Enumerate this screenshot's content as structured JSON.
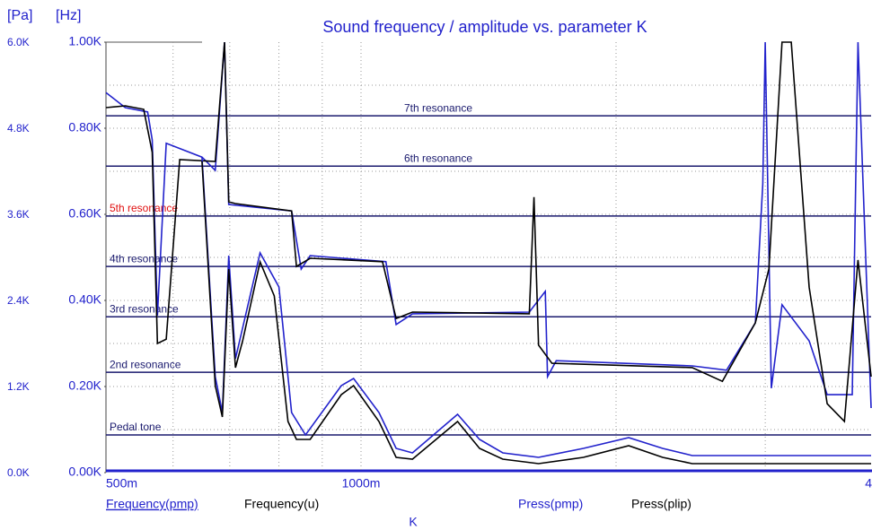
{
  "chart_data": {
    "type": "line",
    "title": "Sound frequency / amplitude vs. parameter  K",
    "xlabel": "K",
    "ylabel": "[Hz]",
    "y2label": "[Pa]",
    "xscale": "log",
    "xlim": [
      0.5,
      4
    ],
    "xticks": [
      {
        "value": 0.5,
        "label": "500m"
      },
      {
        "value": 1,
        "label": "1000m"
      },
      {
        "value": 4,
        "label": "4"
      }
    ],
    "xminor": [
      0.6,
      0.7,
      0.8,
      0.9,
      2,
      3
    ],
    "ylim": [
      0,
      1000
    ],
    "yticks": [
      {
        "value": 0,
        "label": "0.00K"
      },
      {
        "value": 200,
        "label": "0.20K"
      },
      {
        "value": 400,
        "label": "0.40K"
      },
      {
        "value": 600,
        "label": "0.60K"
      },
      {
        "value": 800,
        "label": "0.80K"
      },
      {
        "value": 1000,
        "label": "1.00K"
      }
    ],
    "yminor": [
      100,
      300,
      500,
      700,
      900
    ],
    "y2lim": [
      0,
      6000
    ],
    "y2ticks": [
      {
        "value": 0,
        "label": "0.0K"
      },
      {
        "value": 1200,
        "label": "1.2K"
      },
      {
        "value": 2400,
        "label": "2.4K"
      },
      {
        "value": 3600,
        "label": "3.6K"
      },
      {
        "value": 4800,
        "label": "4.8K"
      },
      {
        "value": 6000,
        "label": "6.0K"
      }
    ],
    "grid": true,
    "resonances": [
      {
        "label": "7th resonance",
        "value": 829,
        "color": "#1a1a6e"
      },
      {
        "label": "6th resonance",
        "value": 712,
        "color": "#1a1a6e"
      },
      {
        "label": "5th resonance",
        "value": 596,
        "color": "#e01010"
      },
      {
        "label": "4th resonance",
        "value": 479,
        "color": "#1a1a6e"
      },
      {
        "label": "3rd resonance",
        "value": 362,
        "color": "#1a1a6e"
      },
      {
        "label": "2nd resonance",
        "value": 233,
        "color": "#1a1a6e"
      },
      {
        "label": "Pedal tone",
        "value": 87.5,
        "color": "#1a1a6e"
      }
    ],
    "series": [
      {
        "name": "Frequency(pmp)",
        "color": "#2222cc",
        "x": [
          0.5,
          0.527,
          0.56,
          0.567,
          0.575,
          0.589,
          0.649,
          0.673,
          0.69,
          0.698,
          0.828,
          0.85,
          0.871,
          1.07,
          1.1,
          1.15,
          1.58,
          1.65,
          1.66,
          1.7,
          2.46,
          2.7,
          2.92,
          2.98,
          3.0,
          3.05,
          3.14,
          3.38,
          3.55,
          3.8,
          3.86,
          4.0
        ],
        "values": [
          883,
          848,
          838,
          773,
          365,
          765,
          733,
          702,
          1000,
          623,
          608,
          473,
          504,
          490,
          344,
          369,
          373,
          421,
          223,
          260,
          248,
          238,
          348,
          671,
          1000,
          196,
          390,
          306,
          181,
          181,
          1000,
          150
        ]
      },
      {
        "name": "Frequency(u)",
        "color": "#000000",
        "x": [
          0.5,
          0.527,
          0.554,
          0.567,
          0.575,
          0.589,
          0.611,
          0.673,
          0.69,
          0.698,
          0.711,
          0.828,
          0.839,
          0.871,
          1.06,
          1.1,
          1.15,
          1.58,
          1.6,
          1.62,
          1.68,
          2.46,
          2.67,
          2.92,
          3.03,
          3.14,
          3.22,
          3.38,
          3.55,
          3.72,
          3.86,
          4.0
        ],
        "values": [
          848,
          852,
          844,
          744,
          300,
          310,
          727,
          723,
          1000,
          629,
          625,
          608,
          479,
          498,
          490,
          358,
          373,
          369,
          640,
          296,
          254,
          244,
          212,
          348,
          473,
          1000,
          1000,
          431,
          160,
          119,
          494,
          223
        ]
      },
      {
        "name": "Press(pmp)",
        "color": "#2222cc",
        "axis": "y2",
        "x": [
          0.649,
          0.673,
          0.686,
          0.698,
          0.711,
          0.76,
          0.8,
          0.828,
          0.86,
          0.948,
          0.98,
          1.05,
          1.1,
          1.15,
          1.3,
          1.38,
          1.47,
          1.62,
          1.83,
          2.07,
          2.27,
          2.46,
          4.0
        ],
        "values": [
          4400,
          1338,
          838,
          3025,
          1588,
          3063,
          2588,
          838,
          525,
          1213,
          1313,
          838,
          338,
          275,
          813,
          463,
          275,
          213,
          338,
          488,
          338,
          238,
          238
        ]
      },
      {
        "name": "Press(plip)",
        "color": "#000000",
        "axis": "y2",
        "x": [
          0.649,
          0.673,
          0.686,
          0.698,
          0.711,
          0.725,
          0.76,
          0.79,
          0.82,
          0.839,
          0.871,
          0.948,
          0.98,
          1.05,
          1.1,
          1.15,
          1.3,
          1.38,
          1.47,
          1.62,
          1.83,
          2.07,
          2.27,
          2.46,
          4.0
        ],
        "values": [
          4338,
          1213,
          775,
          2838,
          1463,
          1838,
          2938,
          2463,
          713,
          463,
          463,
          1088,
          1213,
          713,
          213,
          188,
          713,
          338,
          188,
          125,
          213,
          375,
          213,
          125,
          125
        ]
      }
    ]
  }
}
